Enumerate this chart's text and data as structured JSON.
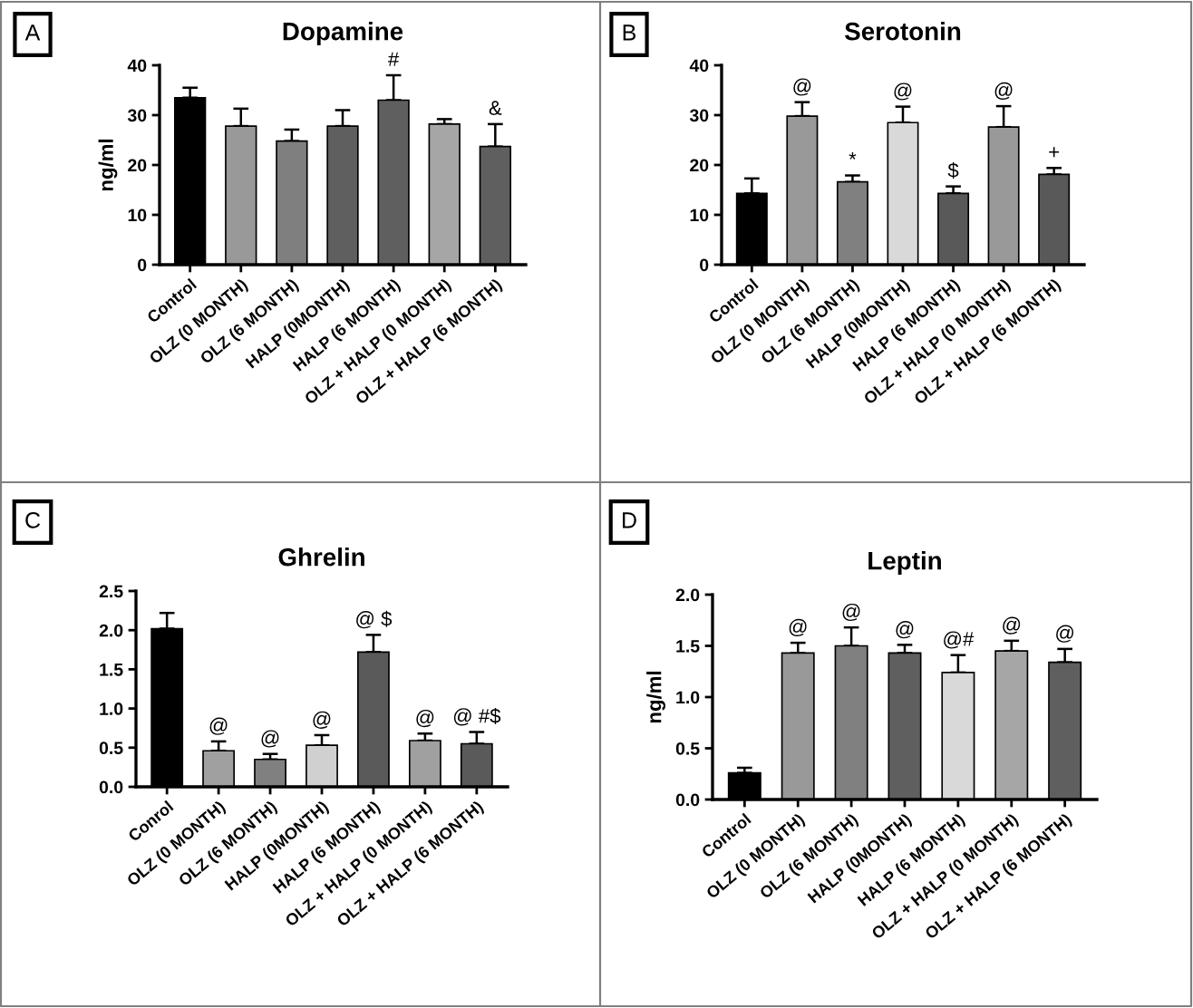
{
  "chart_data": [
    {
      "type": "bar",
      "title": "Dopamine",
      "ylabel": "ng/ml",
      "annotations": [
        "A",
        {
          "text": "#",
          "x": "HALP (6 MONTH)",
          "y": 38
        },
        {
          "text": "&",
          "x": "OLZ + HALP (6 MONTH)",
          "y": 28.2
        }
      ],
      "categories": [
        "Control",
        "OLZ (0 MONTH)",
        "OLZ (6 MONTH)",
        "HALP (0MONTH)",
        "HALP (6 MONTH)",
        "OLZ + HALP (0 MONTH)",
        "OLZ + HALP (6 MONTH)"
      ],
      "values": [
        33.5,
        27.8,
        24.8,
        27.8,
        33,
        28.2,
        23.7
      ],
      "errors": [
        [
          33.5,
          35.5
        ],
        [
          27.8,
          31.3
        ],
        [
          24.8,
          27.1
        ],
        [
          27.8,
          31
        ],
        [
          33,
          38
        ],
        [
          28.2,
          29.2
        ],
        [
          23.7,
          28.2
        ]
      ],
      "colors": [
        "#000000",
        "#999999",
        "#7f7f7f",
        "#5f5f5f",
        "#5f5f5f",
        "#a6a6a6",
        "#5f5f5f"
      ],
      "ylim": [
        0,
        40
      ],
      "yticks": [
        0,
        10,
        20,
        30,
        40
      ],
      "grid": false,
      "legend": false
    },
    {
      "type": "bar",
      "title": "Serotonin",
      "annotations": [
        "B",
        {
          "text": "@",
          "x": "OLZ (0 MONTH)",
          "y": 32.6
        },
        {
          "text": "*",
          "x": "OLZ (6 MONTH)",
          "y": 17.9
        },
        {
          "text": "@",
          "x": "HALP (0MONTH)",
          "y": 31.7
        },
        {
          "text": "$",
          "x": "HALP (6 MONTH)",
          "y": 15.7
        },
        {
          "text": "@",
          "x": "OLZ + HALP (0 MONTH)",
          "y": 31.8
        },
        {
          "text": "+",
          "x": "OLZ + HALP (6 MONTH)",
          "y": 19.4
        }
      ],
      "categories": [
        "Control",
        "OLZ (0 MONTH)",
        "OLZ (6 MONTH)",
        "HALP (0MONTH)",
        "HALP (6 MONTH)",
        "OLZ + HALP (0 MONTH)",
        "OLZ + HALP (6 MONTH)"
      ],
      "values": [
        14.3,
        29.8,
        16.6,
        28.5,
        14.3,
        27.6,
        18.1
      ],
      "errors": [
        [
          14.3,
          17.3
        ],
        [
          29.8,
          32.6
        ],
        [
          16.6,
          17.9
        ],
        [
          28.5,
          31.7
        ],
        [
          14.3,
          15.7
        ],
        [
          27.6,
          31.8
        ],
        [
          18.1,
          19.4
        ]
      ],
      "colors": [
        "#000000",
        "#999999",
        "#808080",
        "#d9d9d9",
        "#595959",
        "#999999",
        "#595959"
      ],
      "ylim": [
        0,
        40
      ],
      "yticks": [
        0,
        10,
        20,
        30,
        40
      ],
      "grid": false,
      "legend": false
    },
    {
      "type": "bar",
      "title": "Ghrelin",
      "annotations": [
        "C",
        {
          "text": "@",
          "x": "OLZ (0 MONTH)",
          "y": 0.58
        },
        {
          "text": "@",
          "x": "OLZ (6 MONTH)",
          "y": 0.42
        },
        {
          "text": "@",
          "x": "HALP (0MONTH)",
          "y": 0.66
        },
        {
          "text": "@ $",
          "x": "HALP (6 MONTH)",
          "y": 1.94
        },
        {
          "text": "@",
          "x": "OLZ + HALP (0 MONTH)",
          "y": 0.68
        },
        {
          "text": "@ #$",
          "x": "OLZ + HALP (6 MONTH)",
          "y": 0.7
        }
      ],
      "categories": [
        "Conrol",
        "OLZ (0 MONTH)",
        "OLZ (6 MONTH)",
        "HALP (0MONTH)",
        "HALP (6 MONTH)",
        "OLZ + HALP (0 MONTH)",
        "OLZ + HALP (6 MONTH)"
      ],
      "values": [
        2.02,
        0.46,
        0.35,
        0.53,
        1.72,
        0.59,
        0.55
      ],
      "errors": [
        [
          2.02,
          2.22
        ],
        [
          0.46,
          0.58
        ],
        [
          0.35,
          0.42
        ],
        [
          0.53,
          0.66
        ],
        [
          1.72,
          1.94
        ],
        [
          0.59,
          0.68
        ],
        [
          0.55,
          0.7
        ]
      ],
      "colors": [
        "#000000",
        "#a0a0a0",
        "#808080",
        "#d0d0d0",
        "#5a5a5a",
        "#a0a0a0",
        "#5a5a5a"
      ],
      "ylim": [
        0,
        2.5
      ],
      "yticks": [
        {
          "value": 0,
          "label": "0.0"
        },
        0.5,
        {
          "value": 1,
          "label": "1.0"
        },
        1.5,
        {
          "value": 2,
          "label": "2.0"
        },
        2.5
      ],
      "grid": false,
      "legend": false
    },
    {
      "type": "bar",
      "title": "Leptin",
      "ylabel": "ng/ml",
      "annotations": [
        "D",
        {
          "text": "@",
          "x": "OLZ (0 MONTH)",
          "y": 1.53
        },
        {
          "text": "@",
          "x": "OLZ (6 MONTH)",
          "y": 1.68
        },
        {
          "text": "@",
          "x": "HALP (0MONTH)",
          "y": 1.51
        },
        {
          "text": "@#",
          "x": "HALP (6 MONTH)",
          "y": 1.41
        },
        {
          "text": "@",
          "x": "OLZ + HALP (0 MONTH)",
          "y": 1.55
        },
        {
          "text": "@",
          "x": "OLZ + HALP (6 MONTH)",
          "y": 1.47
        }
      ],
      "categories": [
        "Control",
        "OLZ (0 MONTH)",
        "OLZ (6 MONTH)",
        "HALP (0MONTH)",
        "HALP (6 MONTH)",
        "OLZ + HALP (0 MONTH)",
        "OLZ + HALP (6 MONTH)"
      ],
      "values": [
        0.26,
        1.43,
        1.5,
        1.43,
        1.24,
        1.45,
        1.34
      ],
      "errors": [
        [
          0.26,
          0.31
        ],
        [
          1.43,
          1.53
        ],
        [
          1.5,
          1.68
        ],
        [
          1.43,
          1.51
        ],
        [
          1.24,
          1.41
        ],
        [
          1.45,
          1.55
        ],
        [
          1.34,
          1.47
        ]
      ],
      "colors": [
        "#000000",
        "#999999",
        "#808080",
        "#5f5f5f",
        "#d9d9d9",
        "#a6a6a6",
        "#5f5f5f"
      ],
      "ylim": [
        0,
        2
      ],
      "yticks": [
        {
          "value": 0,
          "label": "0.0"
        },
        0.5,
        {
          "value": 1,
          "label": "1.0"
        },
        1.5,
        {
          "value": 2,
          "label": "2.0"
        }
      ],
      "grid": false,
      "legend": false
    }
  ]
}
